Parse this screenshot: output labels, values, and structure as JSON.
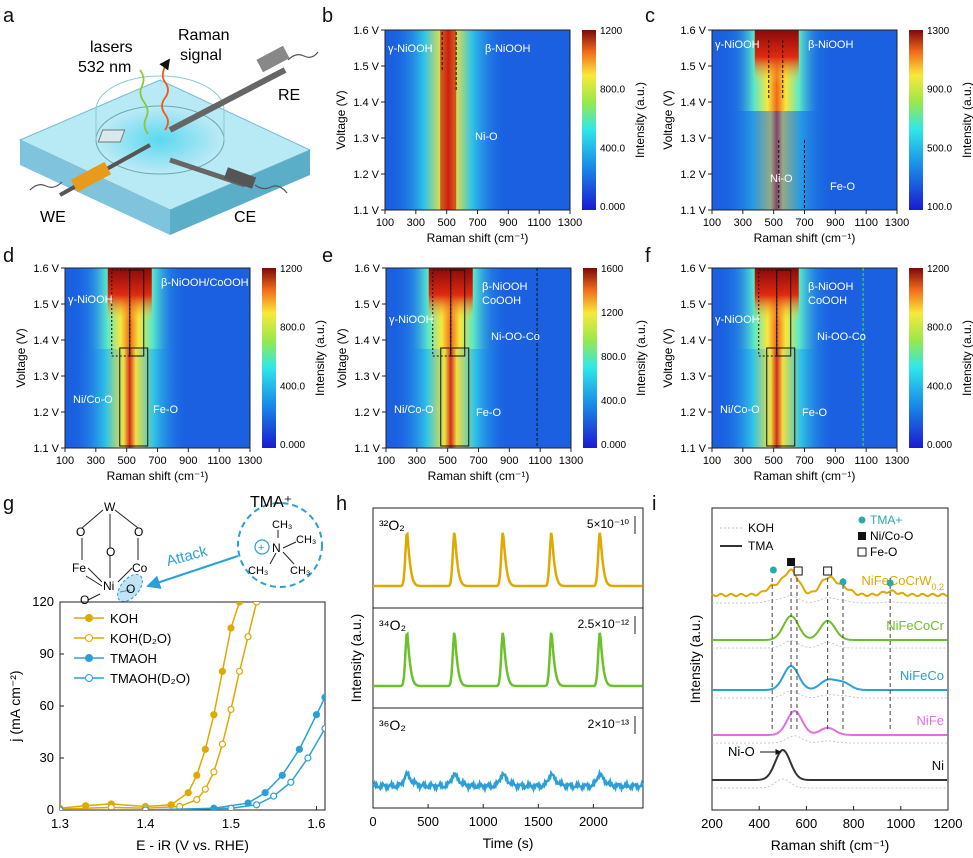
{
  "panel_labels": [
    "a",
    "b",
    "c",
    "d",
    "e",
    "f",
    "g",
    "h",
    "i"
  ],
  "panel_a": {
    "lasers_line1": "lasers",
    "lasers_line2": "532 nm",
    "raman_line1": "Raman",
    "raman_line2": "signal",
    "re": "RE",
    "we": "WE",
    "ce": "CE"
  },
  "heatmaps": [
    {
      "id": "b",
      "vmax_labels": [
        "1200",
        "800.0",
        "400.0",
        "0.000"
      ],
      "annotations": [
        "γ-NiOOH",
        "β-NiOOH",
        "Ni-O"
      ]
    },
    {
      "id": "c",
      "vmax_labels": [
        "1300",
        "900.0",
        "500.0",
        "100.0"
      ],
      "annotations": [
        "γ-NiOOH",
        "β-NiOOH",
        "Ni-O",
        "Fe-O"
      ]
    },
    {
      "id": "d",
      "vmax_labels": [
        "1200",
        "800.0",
        "400.0",
        "0.000"
      ],
      "annotations": [
        "γ-NiOOH",
        "β-NiOOH/CoOOH",
        "Ni/Co-O",
        "Fe-O"
      ]
    },
    {
      "id": "e",
      "vmax_labels": [
        "1600",
        "1200",
        "800.0",
        "400.0",
        "0.000"
      ],
      "annotations": [
        "γ-NiOOH",
        "β-NiOOH",
        "CoOOH",
        "Ni-OO-Co",
        "Ni/Co-O",
        "Fe-O"
      ]
    },
    {
      "id": "f",
      "vmax_labels": [
        "1200",
        "800.0",
        "400.0",
        "0.000"
      ],
      "annotations": [
        "γ-NiOOH",
        "β-NiOOH",
        "CoOOH",
        "Ni-OO-Co",
        "Ni/Co-O",
        "Fe-O"
      ]
    }
  ],
  "heatmap_axes": {
    "xlabel": "Raman shift (cm⁻¹)",
    "ylabel": "Voltage (V)",
    "cbar_label": "Intensity (a.u.)",
    "xticks": [
      "100",
      "300",
      "500",
      "700",
      "900",
      "1100",
      "1300"
    ],
    "yticks": [
      "1.6",
      "1.5",
      "1.4",
      "1.3",
      "1.2",
      "1.1"
    ]
  },
  "panel_g": {
    "tma_label": "TMA⁺",
    "attack_label": "Attack",
    "atoms": {
      "W": "W",
      "Fe": "Fe",
      "Ni": "Ni",
      "Co": "Co",
      "O": "O",
      "N": "N",
      "CH3": "CH₃"
    }
  },
  "chart_data": [
    {
      "type": "line",
      "panel": "g",
      "xlabel": "E - iR (V vs. RHE)",
      "ylabel": "j (mA cm⁻²)",
      "xlim": [
        1.3,
        1.61
      ],
      "ylim": [
        0,
        120
      ],
      "xticks": [
        "1.3",
        "1.4",
        "1.5",
        "1.6"
      ],
      "yticks": [
        "0",
        "30",
        "60",
        "90",
        "120"
      ],
      "series": [
        {
          "name": "KOH",
          "color": "#e0a800",
          "marker": "filled",
          "x": [
            1.3,
            1.33,
            1.36,
            1.4,
            1.43,
            1.45,
            1.46,
            1.47,
            1.48,
            1.49,
            1.5,
            1.51
          ],
          "y": [
            1,
            2.5,
            3.5,
            2,
            3,
            10,
            20,
            35,
            55,
            80,
            105,
            120
          ]
        },
        {
          "name": "KOH(D₂O)",
          "color": "#e0a800",
          "marker": "open",
          "x": [
            1.3,
            1.36,
            1.4,
            1.44,
            1.46,
            1.47,
            1.48,
            1.49,
            1.5,
            1.51,
            1.52,
            1.53
          ],
          "y": [
            0.5,
            1.5,
            1,
            2,
            6,
            12,
            22,
            38,
            58,
            80,
            100,
            120
          ]
        },
        {
          "name": "TMAOH",
          "color": "#2a9fd8",
          "marker": "filled",
          "x": [
            1.3,
            1.4,
            1.48,
            1.52,
            1.54,
            1.56,
            1.58,
            1.6,
            1.61
          ],
          "y": [
            0,
            0,
            1,
            4,
            10,
            20,
            35,
            55,
            65
          ]
        },
        {
          "name": "TMAOH(D₂O)",
          "color": "#2a9fd8",
          "marker": "open",
          "x": [
            1.3,
            1.4,
            1.5,
            1.53,
            1.55,
            1.57,
            1.59,
            1.61
          ],
          "y": [
            0,
            0,
            1,
            3,
            8,
            16,
            30,
            47
          ]
        }
      ]
    },
    {
      "type": "line",
      "panel": "h",
      "xlabel": "Time (s)",
      "ylabel": "Intensity (a.u.)",
      "xlim": [
        0,
        2450
      ],
      "xticks": [
        "0",
        "500",
        "1000",
        "1500",
        "2000"
      ],
      "peak_times": [
        310,
        740,
        1180,
        1620,
        2060
      ],
      "series": [
        {
          "name": "³²O₂",
          "scale": "5×10⁻¹⁰",
          "color": "#e0a800"
        },
        {
          "name": "³⁴O₂",
          "scale": "2.5×10⁻¹²",
          "color": "#6cc02a"
        },
        {
          "name": "³⁶O₂",
          "scale": "2×10⁻¹³",
          "color": "#2a9fd8"
        }
      ]
    },
    {
      "type": "line",
      "panel": "i",
      "xlabel": "Raman shift (cm⁻¹)",
      "ylabel": "Intensity (a.u.)",
      "xlim": [
        200,
        1200
      ],
      "xticks": [
        "200",
        "400",
        "600",
        "800",
        "1000",
        "1200"
      ],
      "legend": [
        "KOH",
        "TMA"
      ],
      "marker_legend": [
        "TMA+",
        "Ni/Co-O",
        "Fe-O"
      ],
      "arrow_label": "Ni-O",
      "dashed_positions": [
        455,
        535,
        560,
        690,
        755,
        955
      ],
      "series": [
        {
          "name": "NiFeCoCrW0.2",
          "label_main": "NiFeCoCrW",
          "label_sub": "0.2",
          "color": "#e0a800",
          "peaks": [
            [
              460,
              0.35
            ],
            [
              535,
              1.0
            ],
            [
              690,
              0.7
            ],
            [
              755,
              0.3
            ],
            [
              955,
              0.15
            ]
          ]
        },
        {
          "name": "NiFeCoCr",
          "color": "#6cc02a",
          "peaks": [
            [
              535,
              1.0
            ],
            [
              690,
              0.8
            ]
          ]
        },
        {
          "name": "NiFeCo",
          "color": "#2a9fd8",
          "peaks": [
            [
              535,
              1.0
            ],
            [
              690,
              0.4
            ],
            [
              755,
              0.3
            ]
          ]
        },
        {
          "name": "NiFe",
          "color": "#e070e0",
          "peaks": [
            [
              550,
              1.0
            ],
            [
              690,
              0.3
            ]
          ]
        },
        {
          "name": "Ni",
          "color": "#333333",
          "peaks": [
            [
              500,
              1.0
            ]
          ]
        }
      ]
    }
  ]
}
